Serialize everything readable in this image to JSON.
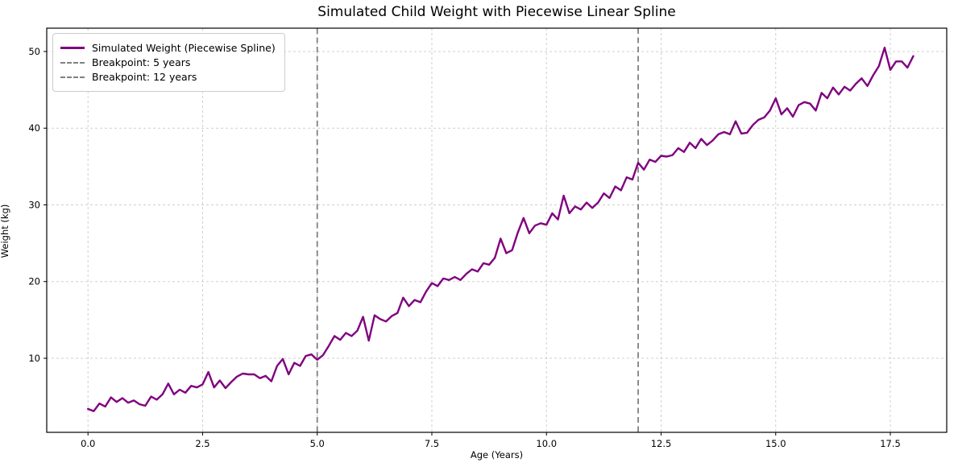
{
  "title": "Simulated Child Weight with Piecewise Linear Spline",
  "chart_data": {
    "type": "line",
    "title": "Simulated Child Weight with Piecewise Linear Spline",
    "xlabel": "Age (Years)",
    "ylabel": "Weight (kg)",
    "xlim": [
      -0.9,
      18.73
    ],
    "ylim": [
      0.34,
      53.04
    ],
    "grid": true,
    "grid_style": "dashed",
    "legend_position": "upper left",
    "xticks": {
      "values": [
        0,
        2.5,
        5,
        7.5,
        10,
        12.5,
        15,
        17.5
      ],
      "labels": [
        "0.0",
        "2.5",
        "5.0",
        "7.5",
        "10.0",
        "12.5",
        "15.0",
        "17.5"
      ]
    },
    "yticks": {
      "values": [
        10,
        20,
        30,
        40,
        50
      ],
      "labels": [
        "10",
        "20",
        "30",
        "40",
        "50"
      ]
    },
    "series": [
      {
        "name": "Simulated Weight (Piecewise Spline)",
        "color": "#800080",
        "style": "solid",
        "line_width": 2.4,
        "x_start": 0,
        "x_step": 0.125,
        "values": [
          3.4,
          3.1,
          4.1,
          3.7,
          4.9,
          4.3,
          4.8,
          4.2,
          4.5,
          4.0,
          3.8,
          5.0,
          4.6,
          5.3,
          6.7,
          5.3,
          5.9,
          5.5,
          6.4,
          6.2,
          6.6,
          8.2,
          6.2,
          7.1,
          6.1,
          6.9,
          7.6,
          8.0,
          7.9,
          7.9,
          7.4,
          7.7,
          7.0,
          9.0,
          9.9,
          7.9,
          9.4,
          9.0,
          10.3,
          10.5,
          9.8,
          10.4,
          11.6,
          12.9,
          12.4,
          13.3,
          12.9,
          13.6,
          15.4,
          12.3,
          15.6,
          15.1,
          14.8,
          15.5,
          15.9,
          17.9,
          16.8,
          17.6,
          17.3,
          18.7,
          19.8,
          19.4,
          20.4,
          20.2,
          20.6,
          20.2,
          21.0,
          21.6,
          21.3,
          22.4,
          22.2,
          23.1,
          25.6,
          23.7,
          24.1,
          26.4,
          28.3,
          26.3,
          27.3,
          27.6,
          27.4,
          28.9,
          28.1,
          31.2,
          28.9,
          29.8,
          29.4,
          30.3,
          29.6,
          30.3,
          31.5,
          30.9,
          32.4,
          31.9,
          33.6,
          33.3,
          35.5,
          34.6,
          35.9,
          35.6,
          36.4,
          36.3,
          36.5,
          37.4,
          36.9,
          38.1,
          37.4,
          38.6,
          37.8,
          38.4,
          39.2,
          39.5,
          39.2,
          40.9,
          39.3,
          39.4,
          40.4,
          41.1,
          41.4,
          42.3,
          43.9,
          41.8,
          42.6,
          41.5,
          43.0,
          43.4,
          43.2,
          42.3,
          44.6,
          43.9,
          45.3,
          44.4,
          45.4,
          44.9,
          45.8,
          46.5,
          45.5,
          46.9,
          48.1,
          50.5,
          47.6,
          48.7,
          48.7,
          47.9,
          49.4
        ]
      }
    ],
    "breakpoints": [
      {
        "label": "Breakpoint: 5 years",
        "x": 5,
        "color": "#808080",
        "style": "dashed"
      },
      {
        "label": "Breakpoint: 12 years",
        "x": 12,
        "color": "#808080",
        "style": "dashed"
      }
    ]
  },
  "colors": {
    "line": "#800080",
    "breakpoint": "#808080",
    "grid": "#cfcfcf",
    "spine": "#000000",
    "background": "#ffffff"
  }
}
